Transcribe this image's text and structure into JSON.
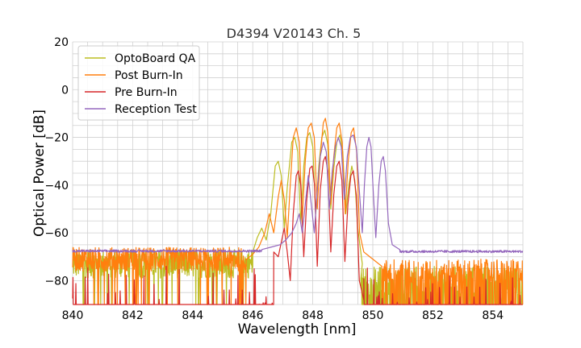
{
  "chart_data": {
    "type": "line",
    "title": "D4394 V20143 Ch. 5",
    "xlabel": "Wavelength [nm]",
    "ylabel": "Optical Power [dB]",
    "xlim": [
      840,
      855
    ],
    "ylim": [
      -90,
      20
    ],
    "xticks": [
      840,
      842,
      844,
      846,
      848,
      850,
      852,
      854
    ],
    "yticks": [
      20,
      0,
      -20,
      -40,
      -60,
      -80
    ],
    "xtick_labels": [
      "840",
      "842",
      "844",
      "846",
      "848",
      "850",
      "852",
      "854"
    ],
    "ytick_labels": [
      "20",
      "0",
      "−20",
      "−40",
      "−60",
      "−80"
    ],
    "minor_grid_step_x": 0.5,
    "minor_grid_step_y": 5,
    "grid": true,
    "legend_position": "top-left",
    "series": [
      {
        "name": "OptoBoard QA",
        "color": "#bcbd22",
        "noise": {
          "x_from": 840.0,
          "x_to": 846.0,
          "base": -73,
          "amp": 6,
          "floor": -90,
          "spike_rate": 0.04
        },
        "noise_tail": {
          "x_from": 849.6,
          "x_to": 855.0,
          "base": -80,
          "amp": 6,
          "floor": -90,
          "spike_rate": 0.5
        },
        "points": [
          [
            846.0,
            -68
          ],
          [
            846.15,
            -62
          ],
          [
            846.3,
            -58
          ],
          [
            846.45,
            -63
          ],
          [
            846.6,
            -52
          ],
          [
            846.75,
            -32
          ],
          [
            846.85,
            -30
          ],
          [
            846.95,
            -36
          ],
          [
            847.05,
            -58
          ],
          [
            847.15,
            -41
          ],
          [
            847.3,
            -22
          ],
          [
            847.4,
            -20
          ],
          [
            847.5,
            -26
          ],
          [
            847.6,
            -56
          ],
          [
            847.7,
            -32
          ],
          [
            847.8,
            -20
          ],
          [
            847.9,
            -18
          ],
          [
            848.0,
            -24
          ],
          [
            848.1,
            -52
          ],
          [
            848.2,
            -32
          ],
          [
            848.3,
            -20
          ],
          [
            848.4,
            -17
          ],
          [
            848.5,
            -23
          ],
          [
            848.6,
            -50
          ],
          [
            848.7,
            -33
          ],
          [
            848.8,
            -22
          ],
          [
            848.9,
            -19
          ],
          [
            849.0,
            -26
          ],
          [
            849.1,
            -52
          ],
          [
            849.2,
            -40
          ],
          [
            849.3,
            -32
          ],
          [
            849.4,
            -38
          ],
          [
            849.5,
            -58
          ],
          [
            849.65,
            -73
          ]
        ]
      },
      {
        "name": "Post Burn-In",
        "color": "#ff7f0e",
        "noise": {
          "x_from": 840.0,
          "x_to": 845.8,
          "base": -71,
          "amp": 5,
          "floor": -90,
          "spike_rate": 0.08
        },
        "noise_tail": {
          "x_from": 850.3,
          "x_to": 855.0,
          "base": -76,
          "amp": 5,
          "floor": -90,
          "spike_rate": 0.4
        },
        "points": [
          [
            845.8,
            -71
          ],
          [
            846.0,
            -69
          ],
          [
            846.2,
            -66
          ],
          [
            846.4,
            -60
          ],
          [
            846.55,
            -52
          ],
          [
            846.7,
            -60
          ],
          [
            846.85,
            -45
          ],
          [
            846.95,
            -38
          ],
          [
            847.05,
            -46
          ],
          [
            847.15,
            -62
          ],
          [
            847.25,
            -40
          ],
          [
            847.35,
            -20
          ],
          [
            847.45,
            -16
          ],
          [
            847.55,
            -22
          ],
          [
            847.65,
            -54
          ],
          [
            847.75,
            -30
          ],
          [
            847.85,
            -16
          ],
          [
            847.95,
            -14
          ],
          [
            848.05,
            -20
          ],
          [
            848.15,
            -50
          ],
          [
            848.25,
            -28
          ],
          [
            848.35,
            -14
          ],
          [
            848.42,
            -12
          ],
          [
            848.5,
            -18
          ],
          [
            848.6,
            -48
          ],
          [
            848.7,
            -28
          ],
          [
            848.8,
            -16
          ],
          [
            848.88,
            -14
          ],
          [
            848.98,
            -22
          ],
          [
            849.08,
            -52
          ],
          [
            849.18,
            -30
          ],
          [
            849.28,
            -18
          ],
          [
            849.36,
            -16
          ],
          [
            849.46,
            -26
          ],
          [
            849.56,
            -60
          ],
          [
            849.7,
            -68
          ],
          [
            849.9,
            -70
          ],
          [
            850.1,
            -72
          ],
          [
            850.3,
            -74
          ]
        ]
      },
      {
        "name": "Pre Burn-In",
        "color": "#d62728",
        "noise": {
          "x_from": 840.0,
          "x_to": 846.7,
          "base": -88,
          "amp": 14,
          "floor": -90,
          "spike_rate": 0.9
        },
        "noise_tail": {
          "x_from": 849.7,
          "x_to": 855.0,
          "base": -88,
          "amp": 14,
          "floor": -90,
          "spike_rate": 0.9
        },
        "points": [
          [
            846.7,
            -68
          ],
          [
            846.85,
            -70
          ],
          [
            846.95,
            -64
          ],
          [
            847.05,
            -58
          ],
          [
            847.15,
            -68
          ],
          [
            847.25,
            -80
          ],
          [
            847.35,
            -52
          ],
          [
            847.45,
            -36
          ],
          [
            847.52,
            -34
          ],
          [
            847.6,
            -40
          ],
          [
            847.7,
            -70
          ],
          [
            847.8,
            -46
          ],
          [
            847.9,
            -33
          ],
          [
            847.98,
            -32
          ],
          [
            848.06,
            -40
          ],
          [
            848.15,
            -74
          ],
          [
            848.25,
            -42
          ],
          [
            848.35,
            -30
          ],
          [
            848.42,
            -28
          ],
          [
            848.5,
            -34
          ],
          [
            848.6,
            -68
          ],
          [
            848.7,
            -44
          ],
          [
            848.8,
            -32
          ],
          [
            848.88,
            -30
          ],
          [
            848.97,
            -38
          ],
          [
            849.07,
            -72
          ],
          [
            849.17,
            -48
          ],
          [
            849.27,
            -36
          ],
          [
            849.35,
            -34
          ],
          [
            849.45,
            -44
          ],
          [
            849.55,
            -80
          ],
          [
            849.7,
            -88
          ]
        ]
      },
      {
        "name": "Reception Test",
        "color": "#9467bd",
        "noise": {
          "x_from": 840.0,
          "x_to": 846.3,
          "base": -67.6,
          "amp": 0.5,
          "floor": -90,
          "spike_rate": 0.0
        },
        "noise_tail": {
          "x_from": 850.9,
          "x_to": 855.0,
          "base": -67.8,
          "amp": 0.5,
          "floor": -90,
          "spike_rate": 0.0
        },
        "points": [
          [
            846.3,
            -67
          ],
          [
            846.6,
            -66
          ],
          [
            846.9,
            -65
          ],
          [
            847.1,
            -63
          ],
          [
            847.3,
            -60
          ],
          [
            847.45,
            -56
          ],
          [
            847.55,
            -52
          ],
          [
            847.65,
            -60
          ],
          [
            847.75,
            -48
          ],
          [
            847.85,
            -36
          ],
          [
            847.95,
            -48
          ],
          [
            848.05,
            -60
          ],
          [
            848.15,
            -42
          ],
          [
            848.25,
            -28
          ],
          [
            848.35,
            -22
          ],
          [
            848.45,
            -26
          ],
          [
            848.55,
            -50
          ],
          [
            848.65,
            -34
          ],
          [
            848.75,
            -24
          ],
          [
            848.85,
            -20
          ],
          [
            848.95,
            -24
          ],
          [
            849.05,
            -46
          ],
          [
            849.15,
            -28
          ],
          [
            849.25,
            -20
          ],
          [
            849.35,
            -19
          ],
          [
            849.45,
            -24
          ],
          [
            849.55,
            -42
          ],
          [
            849.65,
            -60
          ],
          [
            849.72,
            -40
          ],
          [
            849.8,
            -24
          ],
          [
            849.87,
            -20
          ],
          [
            849.94,
            -24
          ],
          [
            850.02,
            -44
          ],
          [
            850.1,
            -62
          ],
          [
            850.2,
            -40
          ],
          [
            850.28,
            -30
          ],
          [
            850.35,
            -28
          ],
          [
            850.42,
            -34
          ],
          [
            850.52,
            -56
          ],
          [
            850.65,
            -65
          ],
          [
            850.9,
            -67
          ]
        ]
      }
    ]
  }
}
